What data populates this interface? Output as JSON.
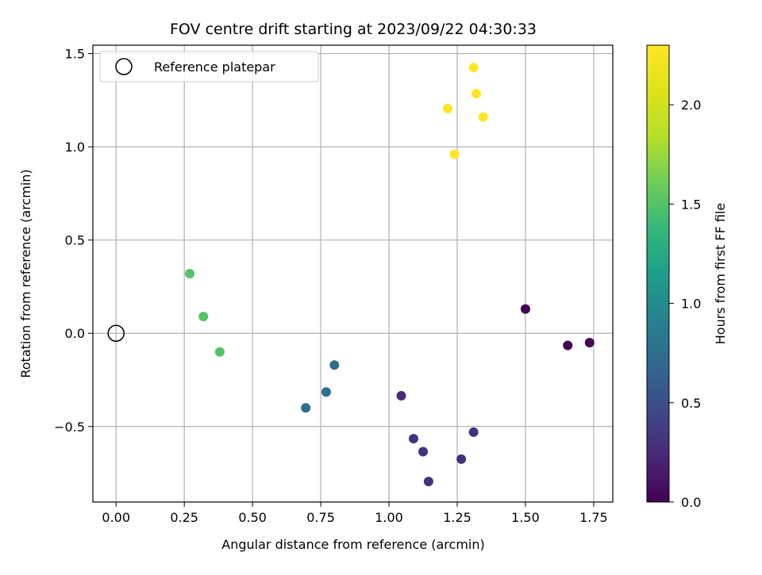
{
  "chart_data": {
    "type": "scatter",
    "title": "FOV centre drift starting at 2023/09/22 04:30:33",
    "xlabel": "Angular distance from reference (arcmin)",
    "ylabel": "Rotation from reference (arcmin)",
    "xlim": [
      -0.085,
      1.82
    ],
    "ylim": [
      -0.905,
      1.545
    ],
    "xticks": [
      0.0,
      0.25,
      0.5,
      0.75,
      1.0,
      1.25,
      1.5,
      1.75
    ],
    "xtick_labels": [
      "0.00",
      "0.25",
      "0.50",
      "0.75",
      "1.00",
      "1.25",
      "1.50",
      "1.75"
    ],
    "yticks": [
      -0.5,
      0.0,
      0.5,
      1.0,
      1.5
    ],
    "ytick_labels": [
      "−0.5",
      "0.0",
      "0.5",
      "1.0",
      "1.5"
    ],
    "grid": true,
    "legend": {
      "placement": "top-left",
      "entries": [
        "Reference platepar"
      ]
    },
    "reference_point": {
      "x": 0.0,
      "y": 0.0,
      "marker": "open-circle"
    },
    "colorbar": {
      "label": "Hours from first FF file",
      "range": [
        0.0,
        2.3
      ],
      "ticks": [
        0.0,
        0.5,
        1.0,
        1.5,
        2.0
      ],
      "tick_labels": [
        "0.0",
        "0.5",
        "1.0",
        "1.5",
        "2.0"
      ],
      "colormap": "viridis"
    },
    "points": [
      {
        "x": 1.5,
        "y": 0.13,
        "hours": 0.0
      },
      {
        "x": 1.655,
        "y": -0.065,
        "hours": 0.0
      },
      {
        "x": 1.735,
        "y": -0.05,
        "hours": 0.0
      },
      {
        "x": 1.045,
        "y": -0.335,
        "hours": 0.25
      },
      {
        "x": 1.09,
        "y": -0.565,
        "hours": 0.3
      },
      {
        "x": 1.125,
        "y": -0.635,
        "hours": 0.3
      },
      {
        "x": 1.145,
        "y": -0.795,
        "hours": 0.3
      },
      {
        "x": 1.265,
        "y": -0.675,
        "hours": 0.3
      },
      {
        "x": 1.31,
        "y": -0.53,
        "hours": 0.3
      },
      {
        "x": 0.695,
        "y": -0.4,
        "hours": 0.75
      },
      {
        "x": 0.77,
        "y": -0.315,
        "hours": 0.75
      },
      {
        "x": 0.8,
        "y": -0.17,
        "hours": 0.75
      },
      {
        "x": 0.27,
        "y": 0.32,
        "hours": 1.5
      },
      {
        "x": 0.32,
        "y": 0.09,
        "hours": 1.5
      },
      {
        "x": 0.38,
        "y": -0.1,
        "hours": 1.5
      },
      {
        "x": 1.215,
        "y": 1.205,
        "hours": 2.3
      },
      {
        "x": 1.24,
        "y": 0.96,
        "hours": 2.3
      },
      {
        "x": 1.31,
        "y": 1.425,
        "hours": 2.3
      },
      {
        "x": 1.32,
        "y": 1.285,
        "hours": 2.3
      },
      {
        "x": 1.345,
        "y": 1.16,
        "hours": 2.3
      }
    ]
  }
}
